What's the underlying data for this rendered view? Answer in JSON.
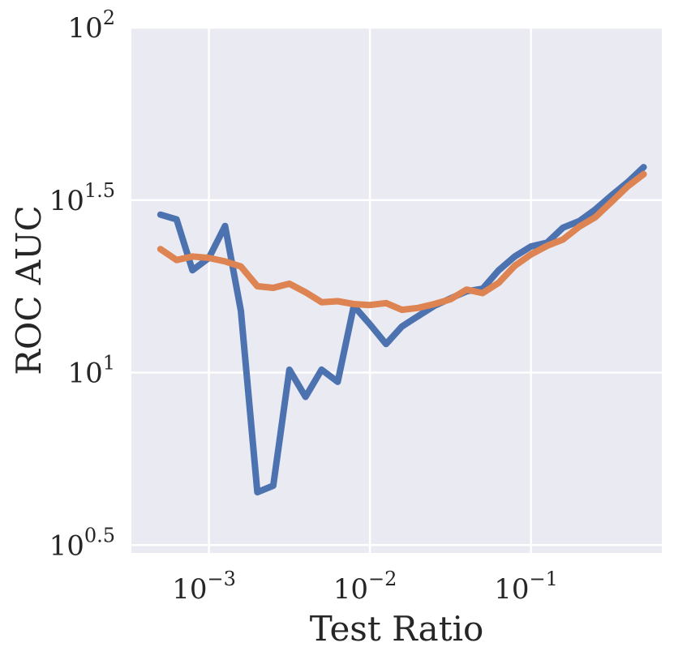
{
  "chart_data": {
    "type": "line",
    "xlabel": "Test Ratio",
    "ylabel": "ROC AUC",
    "xscale": "log",
    "yscale": "log",
    "xlim": [
      0.00033,
      0.65
    ],
    "ylim": [
      3.0,
      100
    ],
    "xticks": [
      {
        "base": "10",
        "exp": "−3"
      },
      {
        "base": "10",
        "exp": "−2"
      },
      {
        "base": "10",
        "exp": "−1"
      }
    ],
    "yticks": [
      {
        "base": "10",
        "exp": "0.5"
      },
      {
        "base": "10",
        "exp": "1"
      },
      {
        "base": "10",
        "exp": "1.5"
      },
      {
        "base": "10",
        "exp": "2"
      }
    ],
    "grid": true,
    "background": "#eaeaf2",
    "series": [
      {
        "color": "#4c72b0",
        "x": [
          0.0005,
          0.00063,
          0.00079,
          0.001,
          0.00126,
          0.00158,
          0.002,
          0.00251,
          0.00316,
          0.00398,
          0.00501,
          0.00631,
          0.00794,
          0.01,
          0.0126,
          0.0158,
          0.02,
          0.0251,
          0.0316,
          0.0398,
          0.0501,
          0.0631,
          0.0794,
          0.1,
          0.126,
          0.158,
          0.2,
          0.251,
          0.316,
          0.398,
          0.501
        ],
        "y": [
          28.7,
          27.8,
          19.8,
          21.5,
          26.6,
          15.1,
          4.5,
          4.7,
          10.2,
          8.5,
          10.2,
          9.4,
          15.6,
          13.8,
          12.1,
          13.6,
          14.6,
          15.6,
          16.4,
          17.2,
          17.5,
          19.8,
          21.7,
          23.2,
          23.8,
          26.3,
          27.5,
          29.7,
          32.6,
          35.6,
          39.4
        ]
      },
      {
        "color": "#dd8452",
        "x": [
          0.0005,
          0.00063,
          0.00079,
          0.001,
          0.00126,
          0.00158,
          0.002,
          0.00251,
          0.00316,
          0.00398,
          0.00501,
          0.00631,
          0.00794,
          0.01,
          0.0126,
          0.0158,
          0.02,
          0.0251,
          0.0316,
          0.0398,
          0.0501,
          0.0631,
          0.0794,
          0.1,
          0.126,
          0.158,
          0.2,
          0.251,
          0.316,
          0.398,
          0.501
        ],
        "y": [
          22.8,
          21.2,
          21.7,
          21.5,
          21.0,
          20.3,
          17.8,
          17.6,
          18.1,
          17.1,
          16.0,
          16.1,
          15.8,
          15.7,
          15.9,
          15.2,
          15.4,
          15.8,
          16.3,
          17.4,
          17.0,
          18.2,
          20.4,
          22.0,
          23.3,
          24.3,
          26.5,
          28.2,
          31.2,
          34.6,
          37.6
        ]
      }
    ]
  }
}
